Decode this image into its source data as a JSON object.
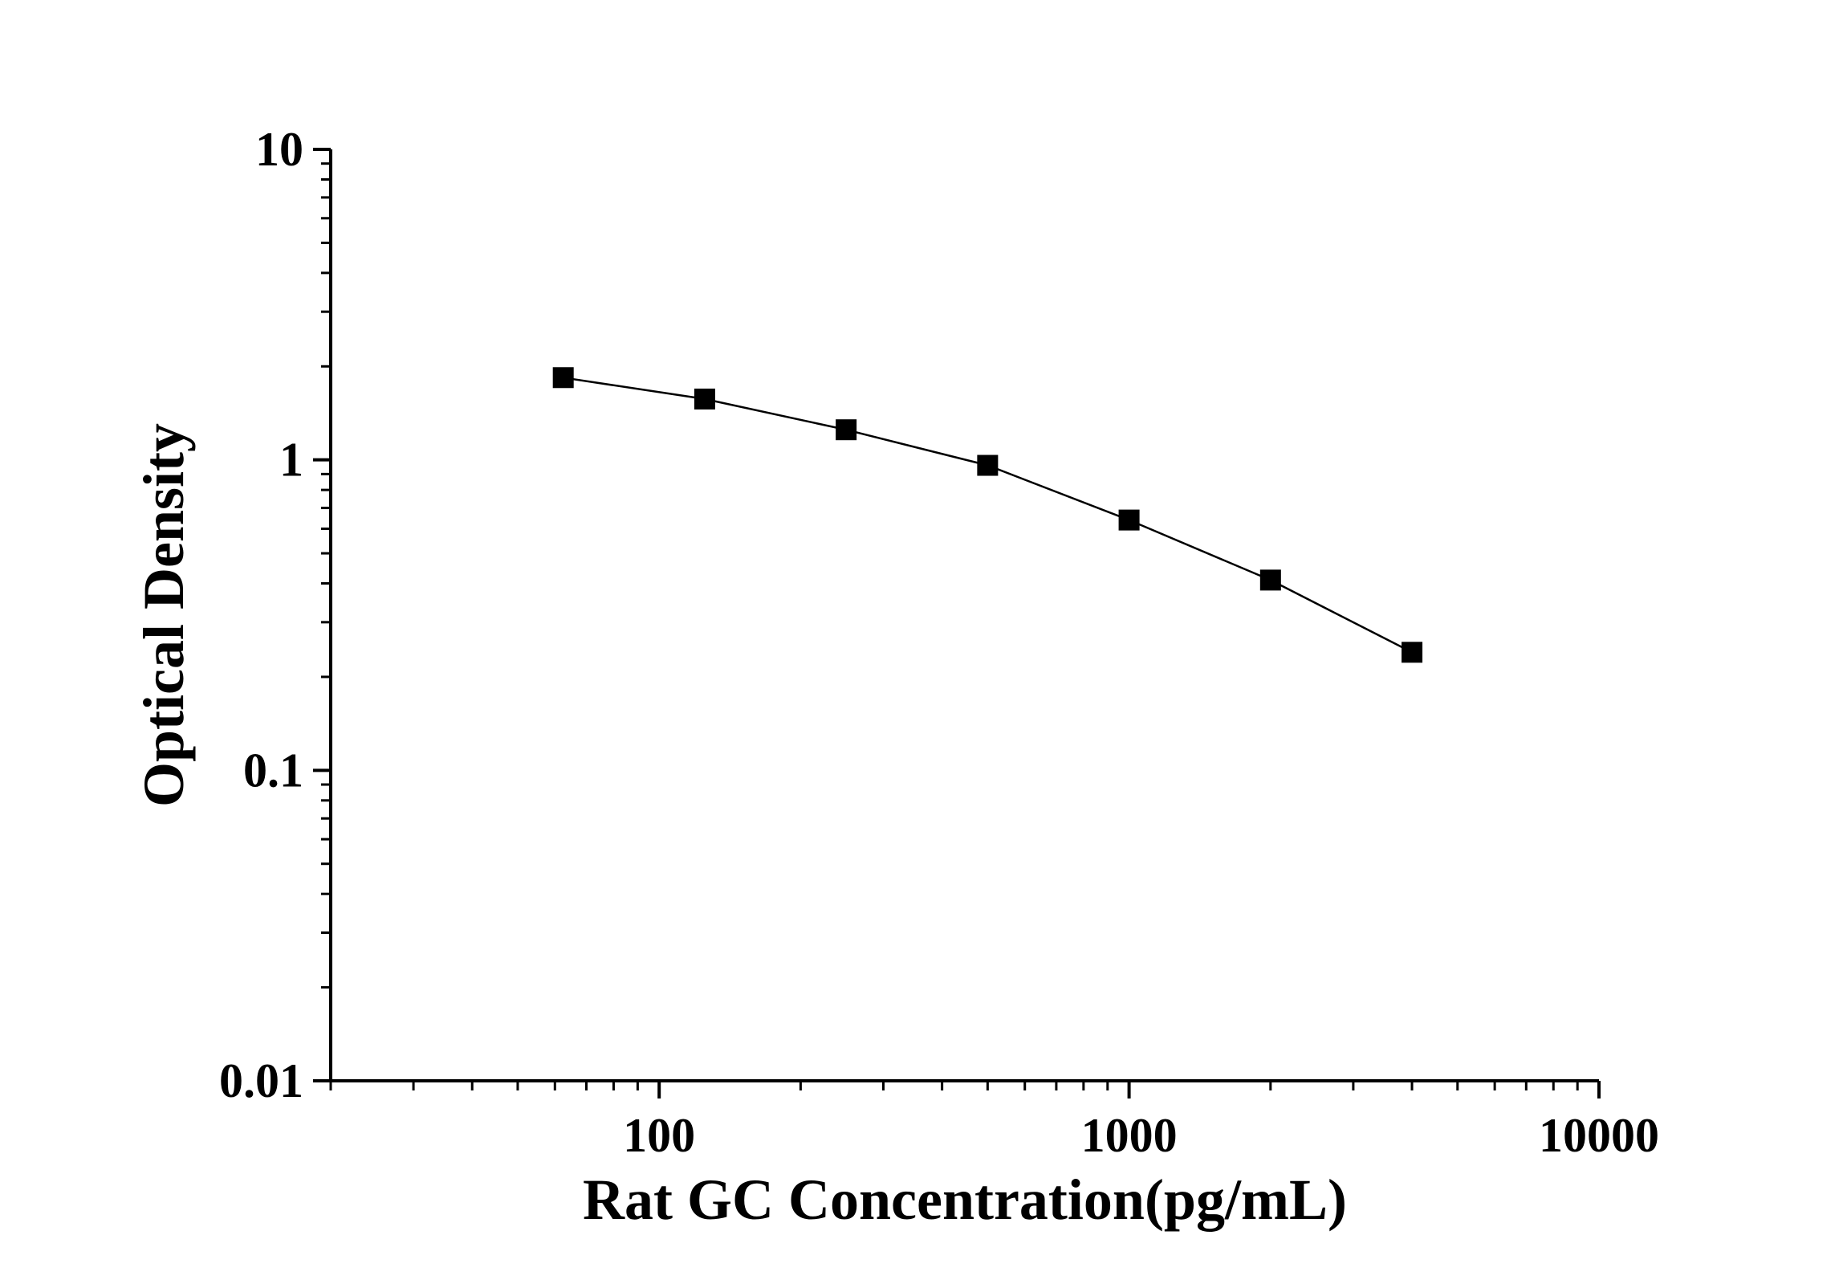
{
  "chart_data": {
    "type": "scatter",
    "title": "",
    "xlabel": "Rat GC Concentration(pg/mL)",
    "ylabel": "Optical Density",
    "xscale": "log",
    "yscale": "log",
    "xlim": [
      20,
      10000
    ],
    "ylim": [
      0.01,
      10
    ],
    "x_ticks": [
      100,
      1000,
      10000
    ],
    "x_tick_labels": [
      "100",
      "1000",
      "10000"
    ],
    "y_ticks": [
      0.01,
      0.1,
      1,
      10
    ],
    "y_tick_labels": [
      "0.01",
      "0.1",
      "1",
      "10"
    ],
    "grid": false,
    "legend": "none",
    "marker": "square",
    "connect_points": true,
    "color": "#000000",
    "series": [
      {
        "x": [
          62.5,
          125,
          250,
          500,
          1000,
          2000,
          4000
        ],
        "y": [
          1.84,
          1.57,
          1.25,
          0.96,
          0.64,
          0.41,
          0.24
        ]
      }
    ]
  }
}
